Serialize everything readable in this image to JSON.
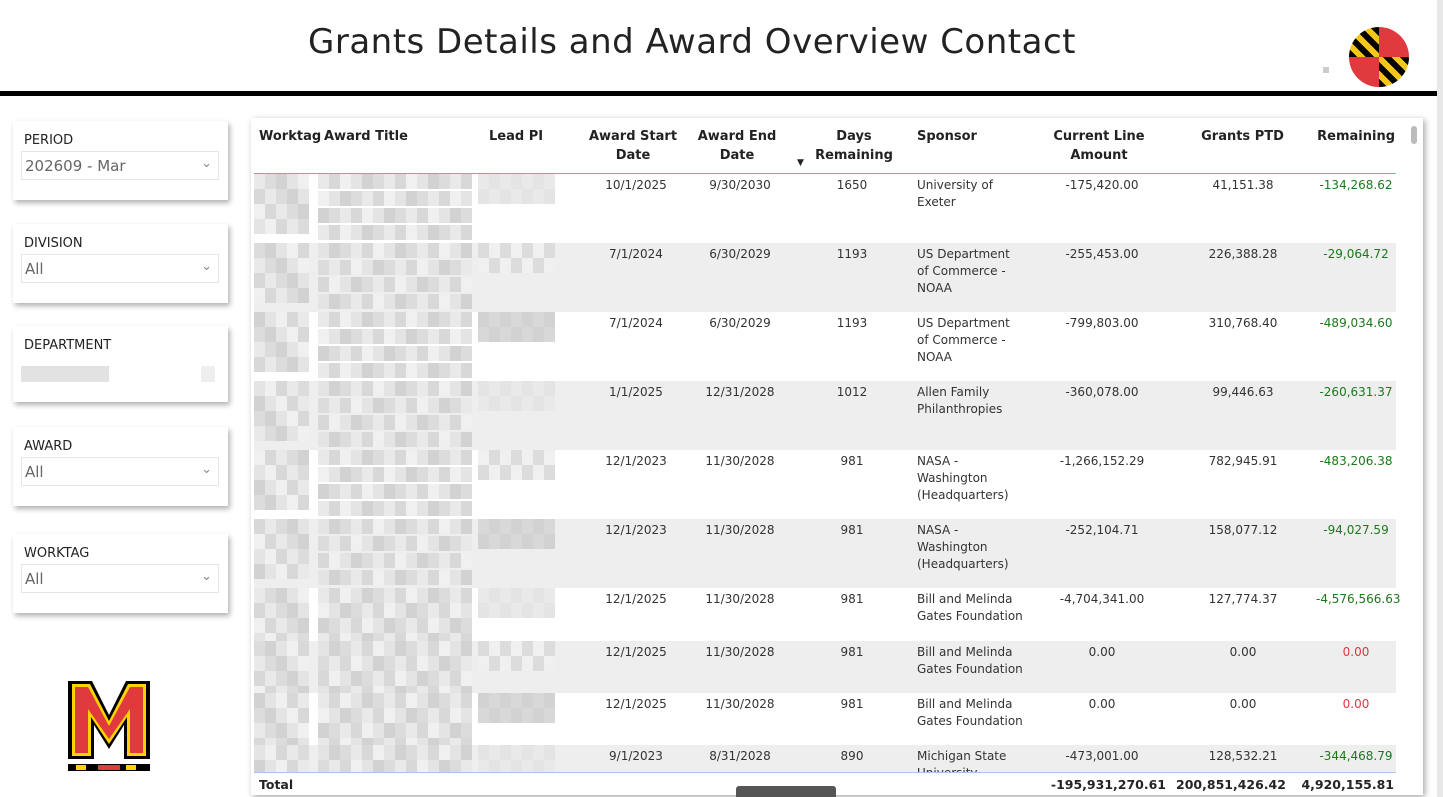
{
  "header": {
    "title": "Grants Details and Award Overview Contact"
  },
  "slicers": [
    {
      "label": "PERIOD",
      "value": "202609 - Mar"
    },
    {
      "label": "DIVISION",
      "value": "All"
    },
    {
      "label": "DEPARTMENT",
      "value": ""
    },
    {
      "label": "AWARD",
      "value": "All"
    },
    {
      "label": "WORKTAG",
      "value": "All"
    }
  ],
  "table": {
    "columns": [
      "Worktag",
      "Award Title",
      "Lead PI",
      "Award Start Date",
      "Award End Date",
      "Days Remaining",
      "Sponsor",
      "Current Line Amount",
      "Grants PTD",
      "Remaining"
    ],
    "sort": {
      "column": "Days Remaining",
      "direction": "descending"
    },
    "rows": [
      {
        "start": "10/1/2025",
        "end": "9/30/2030",
        "days": "1650",
        "sponsor": "University of Exeter",
        "current": "-175,420.00",
        "ptd": "41,151.38",
        "remaining": "-134,268.62",
        "status": "green"
      },
      {
        "start": "7/1/2024",
        "end": "6/30/2029",
        "days": "1193",
        "sponsor": "US Department of Commerce - NOAA",
        "current": "-255,453.00",
        "ptd": "226,388.28",
        "remaining": "-29,064.72",
        "status": "green"
      },
      {
        "start": "7/1/2024",
        "end": "6/30/2029",
        "days": "1193",
        "sponsor": "US Department of Commerce - NOAA",
        "current": "-799,803.00",
        "ptd": "310,768.40",
        "remaining": "-489,034.60",
        "status": "green"
      },
      {
        "start": "1/1/2025",
        "end": "12/31/2028",
        "days": "1012",
        "sponsor": "Allen Family Philanthropies",
        "current": "-360,078.00",
        "ptd": "99,446.63",
        "remaining": "-260,631.37",
        "status": "green"
      },
      {
        "start": "12/1/2023",
        "end": "11/30/2028",
        "days": "981",
        "sponsor": "NASA - Washington (Headquarters)",
        "current": "-1,266,152.29",
        "ptd": "782,945.91",
        "remaining": "-483,206.38",
        "status": "green"
      },
      {
        "start": "12/1/2023",
        "end": "11/30/2028",
        "days": "981",
        "sponsor": "NASA - Washington (Headquarters)",
        "current": "-252,104.71",
        "ptd": "158,077.12",
        "remaining": "-94,027.59",
        "status": "green"
      },
      {
        "start": "12/1/2025",
        "end": "11/30/2028",
        "days": "981",
        "sponsor": "Bill and Melinda Gates Foundation",
        "current": "-4,704,341.00",
        "ptd": "127,774.37",
        "remaining": "-4,576,566.63",
        "status": "green"
      },
      {
        "start": "12/1/2025",
        "end": "11/30/2028",
        "days": "981",
        "sponsor": "Bill and Melinda Gates Foundation",
        "current": "0.00",
        "ptd": "0.00",
        "remaining": "0.00",
        "status": "red"
      },
      {
        "start": "12/1/2025",
        "end": "11/30/2028",
        "days": "981",
        "sponsor": "Bill and Melinda Gates Foundation",
        "current": "0.00",
        "ptd": "0.00",
        "remaining": "0.00",
        "status": "red"
      },
      {
        "start": "9/1/2023",
        "end": "8/31/2028",
        "days": "890",
        "sponsor": "Michigan State University",
        "current": "-473,001.00",
        "ptd": "128,532.21",
        "remaining": "-344,468.79",
        "status": "green"
      }
    ],
    "total": {
      "label": "Total",
      "current": "-195,931,270.61",
      "ptd": "200,851,426.42",
      "remaining": "4,920,155.81"
    }
  },
  "colors": {
    "green": "#1a7a1a",
    "red": "#e0353f",
    "header_rule": "#000000",
    "umd_red": "#e03a3e",
    "umd_gold": "#ffd200"
  }
}
